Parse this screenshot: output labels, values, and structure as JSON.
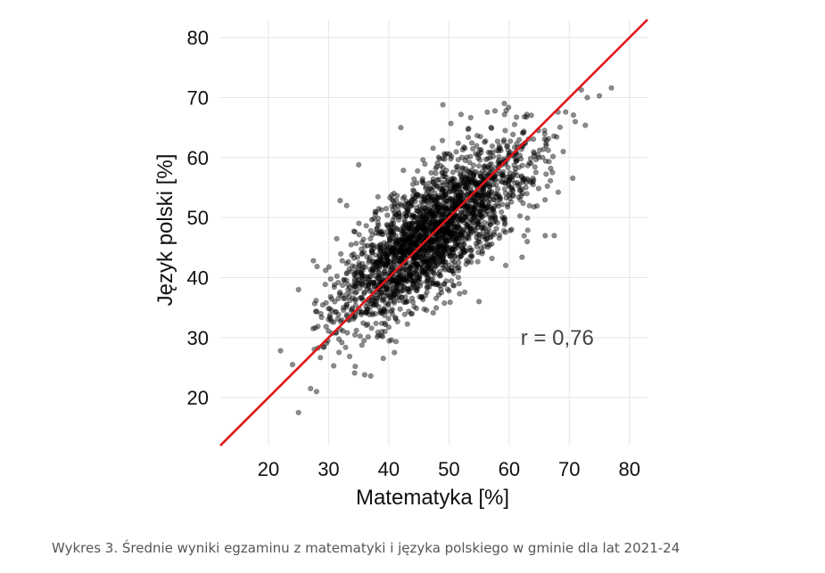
{
  "chart_data": {
    "type": "scatter",
    "title": "",
    "xlabel": "Matematyka [%]",
    "ylabel": "Język polski [%]",
    "xlim": [
      12,
      83
    ],
    "ylim": [
      12,
      83
    ],
    "xticks": [
      20,
      30,
      40,
      50,
      60,
      70,
      80
    ],
    "yticks": [
      20,
      30,
      40,
      50,
      60,
      70,
      80
    ],
    "grid": true,
    "annotation": "r = 0,76",
    "annotation_pos": [
      68,
      30
    ],
    "point_color": "#000000",
    "point_opacity": 0.45,
    "line_color": "#e0161a",
    "trend_line": {
      "slope": 1,
      "intercept": 0
    },
    "correlation": 0.76,
    "n_points": 2400,
    "x_mean": 47,
    "x_sd": 8,
    "y_mean": 47,
    "y_sd": 7.5,
    "outliers": [
      [
        22,
        27.8
      ],
      [
        24,
        25.5
      ],
      [
        25,
        17.5
      ],
      [
        25,
        38
      ],
      [
        27,
        21.5
      ],
      [
        28,
        21
      ],
      [
        30,
        33
      ],
      [
        33,
        52
      ],
      [
        35,
        58.8
      ],
      [
        36,
        23.8
      ],
      [
        37,
        23.6
      ],
      [
        42,
        65
      ],
      [
        49,
        68.8
      ],
      [
        52,
        67.2
      ],
      [
        55,
        36
      ],
      [
        63,
        46
      ],
      [
        66,
        47
      ],
      [
        69,
        61
      ],
      [
        71,
        66
      ],
      [
        73,
        70
      ],
      [
        75,
        70.3
      ],
      [
        77,
        71.6
      ],
      [
        72,
        71.3
      ],
      [
        67.5,
        47
      ]
    ]
  },
  "caption": "Wykres 3. Średnie wyniki egzaminu z matematyki i języka polskiego w gminie dla lat 2021-24"
}
